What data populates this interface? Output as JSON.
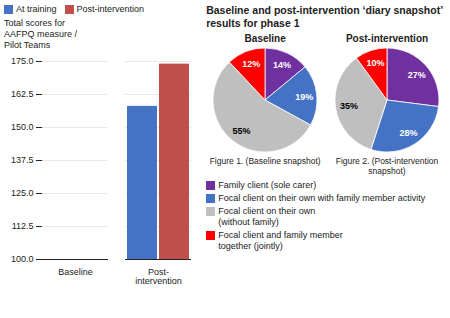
{
  "chart_data": [
    {
      "type": "bar",
      "categories": [
        "Baseline",
        "Post-\nintervention"
      ],
      "series": [
        {
          "name": "At training",
          "color": "#4472c4",
          "values": [
            100.0,
            158.0
          ]
        },
        {
          "name": "Post-intervention",
          "color": "#c0504d",
          "values": [
            null,
            174.0
          ]
        }
      ],
      "ylabel": "Total scores for\nAAFPQ measure /\nPilot Teams",
      "ylim": [
        100,
        175
      ],
      "yticks": [
        {
          "value": 100,
          "label": "100.0"
        },
        112.5,
        {
          "value": 125,
          "label": "125.0"
        },
        137.5,
        {
          "value": 150,
          "label": "150.0"
        },
        162.5,
        {
          "value": 175,
          "label": "175.0"
        }
      ],
      "grid": true,
      "legend": "upper left"
    },
    {
      "type": "pie",
      "title": "Baseline and post-intervention ‘diary snapshot’ results for phase 1",
      "categories": [
        "Family client (sole carer)",
        "Focal client on their own with family member activity",
        "Focal client on their own\n(without family)",
        "Focal client and family member\ntogether (jointly)"
      ],
      "colors": [
        "#7030a0",
        "#4472c4",
        "#bfbfbf",
        "#ff0000"
      ],
      "series": [
        {
          "name": "Baseline",
          "values": [
            14,
            19,
            55,
            12
          ],
          "value_labels": [
            "14%",
            "19%",
            "55%",
            "12%"
          ]
        },
        {
          "name": "Post-intervention",
          "values": [
            27,
            28,
            35,
            10
          ],
          "value_labels": [
            "27%",
            "28%",
            "35%",
            "10%"
          ]
        }
      ],
      "data_labels": true,
      "legend": "bottom",
      "annotations": [
        "Figure 1. (Baseline snapshot)",
        "Figure 2. (Post-intervention snapshot)"
      ]
    }
  ]
}
